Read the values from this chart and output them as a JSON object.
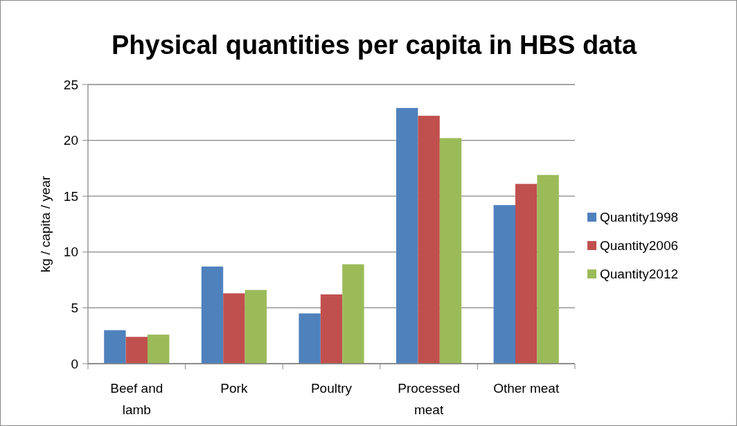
{
  "chart_data": {
    "type": "bar",
    "title": "Physical quantities per capita in HBS data",
    "ylabel": "kg / capita / year",
    "categories": [
      "Beef and lamb",
      "Pork",
      "Poultry",
      "Processed meat",
      "Other meat"
    ],
    "series": [
      {
        "name": "Quantity1998",
        "color": "#4f81bd",
        "values": [
          3.0,
          8.7,
          4.5,
          22.9,
          14.2
        ]
      },
      {
        "name": "Quantity2006",
        "color": "#c0504d",
        "values": [
          2.4,
          6.3,
          6.2,
          22.2,
          16.1
        ]
      },
      {
        "name": "Quantity2012",
        "color": "#9bbb59",
        "values": [
          2.6,
          6.6,
          8.9,
          20.2,
          16.9
        ]
      }
    ],
    "ylim": [
      0,
      25
    ],
    "yticks": [
      0,
      5,
      10,
      15,
      20,
      25
    ],
    "grid": "y",
    "legend": "right"
  }
}
